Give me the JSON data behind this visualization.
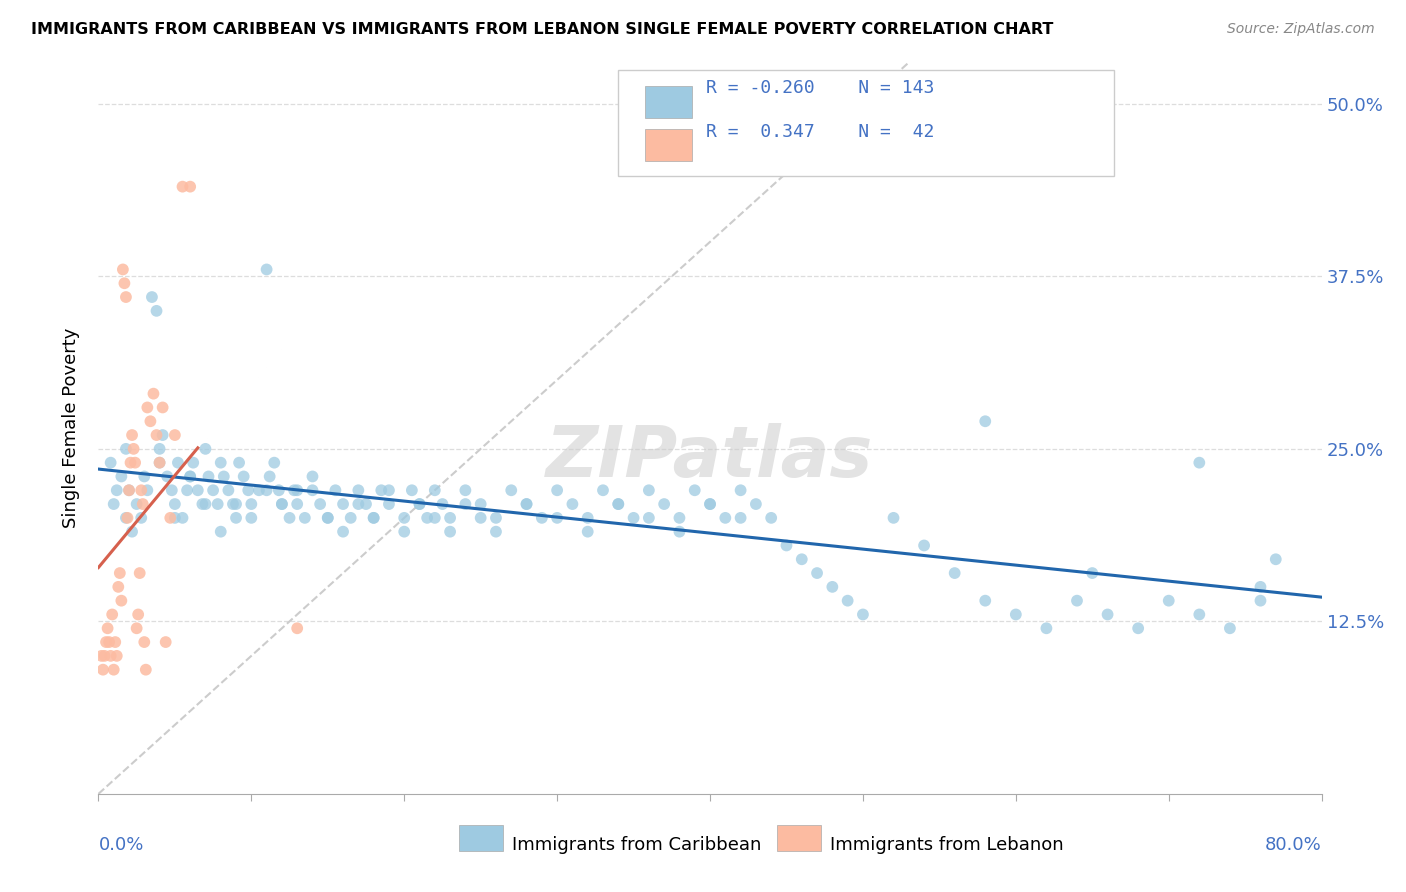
{
  "title": "IMMIGRANTS FROM CARIBBEAN VS IMMIGRANTS FROM LEBANON SINGLE FEMALE POVERTY CORRELATION CHART",
  "source": "Source: ZipAtlas.com",
  "ylabel": "Single Female Poverty",
  "ytick_vals": [
    0.0,
    0.125,
    0.25,
    0.375,
    0.5
  ],
  "ytick_labels": [
    "",
    "12.5%",
    "25.0%",
    "37.5%",
    "50.0%"
  ],
  "xlim": [
    0.0,
    0.8
  ],
  "ylim": [
    0.0,
    0.53
  ],
  "blue_color": "#9ecae1",
  "pink_color": "#fcbba1",
  "trend_blue_color": "#2166ac",
  "trend_pink_color": "#d6604d",
  "r_blue": -0.26,
  "n_blue": 143,
  "r_pink": 0.347,
  "n_pink": 42,
  "caribbean_x": [
    0.008,
    0.012,
    0.01,
    0.015,
    0.018,
    0.02,
    0.022,
    0.025,
    0.018,
    0.028,
    0.03,
    0.032,
    0.035,
    0.038,
    0.04,
    0.042,
    0.045,
    0.048,
    0.05,
    0.052,
    0.055,
    0.058,
    0.06,
    0.062,
    0.065,
    0.068,
    0.07,
    0.072,
    0.075,
    0.078,
    0.08,
    0.082,
    0.085,
    0.088,
    0.09,
    0.092,
    0.095,
    0.098,
    0.1,
    0.105,
    0.11,
    0.112,
    0.115,
    0.118,
    0.12,
    0.125,
    0.128,
    0.13,
    0.135,
    0.14,
    0.145,
    0.15,
    0.155,
    0.16,
    0.165,
    0.17,
    0.175,
    0.18,
    0.185,
    0.19,
    0.2,
    0.205,
    0.21,
    0.215,
    0.22,
    0.225,
    0.23,
    0.24,
    0.25,
    0.26,
    0.27,
    0.28,
    0.29,
    0.3,
    0.31,
    0.32,
    0.33,
    0.34,
    0.35,
    0.36,
    0.37,
    0.38,
    0.39,
    0.4,
    0.41,
    0.42,
    0.43,
    0.44,
    0.45,
    0.46,
    0.47,
    0.48,
    0.49,
    0.5,
    0.52,
    0.54,
    0.56,
    0.58,
    0.6,
    0.62,
    0.64,
    0.66,
    0.68,
    0.7,
    0.72,
    0.74,
    0.76,
    0.04,
    0.05,
    0.06,
    0.07,
    0.08,
    0.09,
    0.1,
    0.11,
    0.12,
    0.13,
    0.14,
    0.15,
    0.16,
    0.17,
    0.18,
    0.19,
    0.2,
    0.21,
    0.22,
    0.23,
    0.24,
    0.25,
    0.26,
    0.28,
    0.3,
    0.32,
    0.34,
    0.36,
    0.38,
    0.4,
    0.42,
    0.77,
    0.65,
    0.58,
    0.72,
    0.76
  ],
  "caribbean_y": [
    0.24,
    0.22,
    0.21,
    0.23,
    0.2,
    0.22,
    0.19,
    0.21,
    0.25,
    0.2,
    0.23,
    0.22,
    0.36,
    0.35,
    0.24,
    0.26,
    0.23,
    0.22,
    0.21,
    0.24,
    0.2,
    0.22,
    0.23,
    0.24,
    0.22,
    0.21,
    0.25,
    0.23,
    0.22,
    0.21,
    0.24,
    0.23,
    0.22,
    0.21,
    0.2,
    0.24,
    0.23,
    0.22,
    0.21,
    0.22,
    0.38,
    0.23,
    0.24,
    0.22,
    0.21,
    0.2,
    0.22,
    0.21,
    0.2,
    0.22,
    0.21,
    0.2,
    0.22,
    0.21,
    0.2,
    0.22,
    0.21,
    0.2,
    0.22,
    0.21,
    0.2,
    0.22,
    0.21,
    0.2,
    0.22,
    0.21,
    0.2,
    0.22,
    0.21,
    0.2,
    0.22,
    0.21,
    0.2,
    0.22,
    0.21,
    0.2,
    0.22,
    0.21,
    0.2,
    0.22,
    0.21,
    0.2,
    0.22,
    0.21,
    0.2,
    0.22,
    0.21,
    0.2,
    0.18,
    0.17,
    0.16,
    0.15,
    0.14,
    0.13,
    0.2,
    0.18,
    0.16,
    0.14,
    0.13,
    0.12,
    0.14,
    0.13,
    0.12,
    0.14,
    0.13,
    0.12,
    0.14,
    0.25,
    0.2,
    0.23,
    0.21,
    0.19,
    0.21,
    0.2,
    0.22,
    0.21,
    0.22,
    0.23,
    0.2,
    0.19,
    0.21,
    0.2,
    0.22,
    0.19,
    0.21,
    0.2,
    0.19,
    0.21,
    0.2,
    0.19,
    0.21,
    0.2,
    0.19,
    0.21,
    0.2,
    0.19,
    0.21,
    0.2,
    0.17,
    0.16,
    0.27,
    0.24,
    0.15
  ],
  "lebanon_x": [
    0.002,
    0.003,
    0.004,
    0.005,
    0.006,
    0.007,
    0.008,
    0.009,
    0.01,
    0.011,
    0.012,
    0.013,
    0.014,
    0.015,
    0.016,
    0.017,
    0.018,
    0.019,
    0.02,
    0.021,
    0.022,
    0.023,
    0.024,
    0.025,
    0.026,
    0.027,
    0.028,
    0.029,
    0.03,
    0.031,
    0.032,
    0.034,
    0.036,
    0.038,
    0.04,
    0.042,
    0.044,
    0.047,
    0.05,
    0.055,
    0.06,
    0.13
  ],
  "lebanon_y": [
    0.1,
    0.09,
    0.1,
    0.11,
    0.12,
    0.11,
    0.1,
    0.13,
    0.09,
    0.11,
    0.1,
    0.15,
    0.16,
    0.14,
    0.38,
    0.37,
    0.36,
    0.2,
    0.22,
    0.24,
    0.26,
    0.25,
    0.24,
    0.12,
    0.13,
    0.16,
    0.22,
    0.21,
    0.11,
    0.09,
    0.28,
    0.27,
    0.29,
    0.26,
    0.24,
    0.28,
    0.11,
    0.2,
    0.26,
    0.44,
    0.44,
    0.12
  ]
}
